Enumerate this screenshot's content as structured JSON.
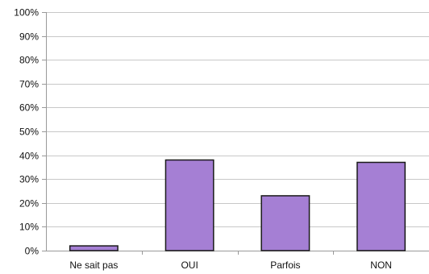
{
  "chart_data": {
    "type": "bar",
    "title": "",
    "xlabel": "",
    "ylabel": "",
    "categories": [
      "Ne sait pas",
      "OUI",
      "Parfois",
      "NON"
    ],
    "values": [
      2,
      38,
      23,
      37
    ],
    "ylim": [
      0,
      100
    ],
    "yticks": [
      "0%",
      "10%",
      "20%",
      "30%",
      "40%",
      "50%",
      "60%",
      "70%",
      "80%",
      "90%",
      "100%"
    ],
    "grid": true,
    "legend": "none",
    "colors": {
      "bar_fill": "#a57fd4",
      "bar_stroke": "#1a1a1a",
      "grid": "#c8c8c8",
      "axis": "#999999",
      "text": "#111111"
    }
  }
}
